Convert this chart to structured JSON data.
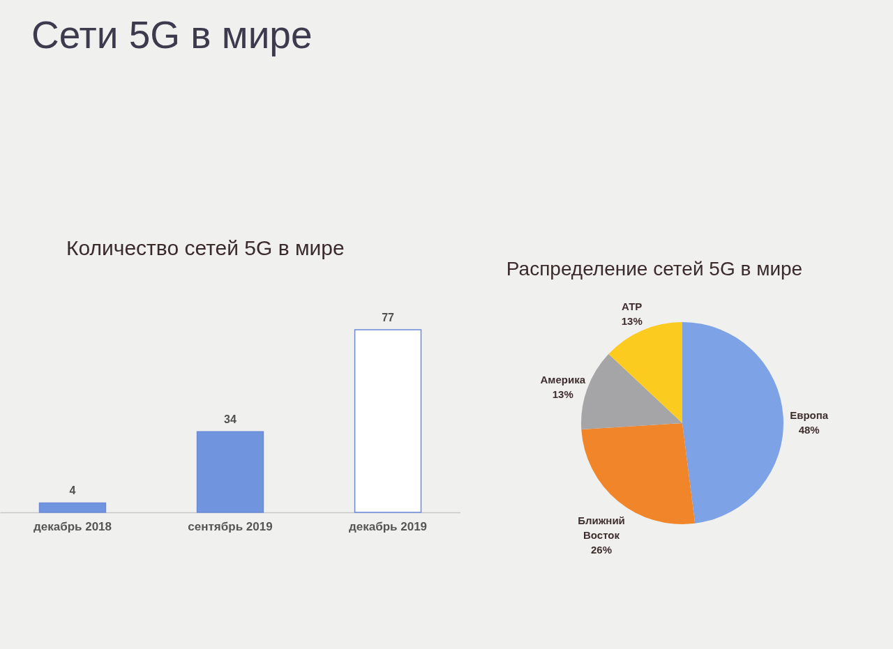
{
  "chart_data": [
    {
      "type": "other",
      "title": "Сети 5G в мире"
    },
    {
      "type": "bar",
      "title": "Количество сетей 5G в мире",
      "categories": [
        "декабрь 2018",
        "сентябрь 2019",
        "декабрь 2019"
      ],
      "values": [
        4,
        34,
        77
      ],
      "colors": [
        "#7094de",
        "#7094de",
        "#ffffff"
      ],
      "data_labels": true
    },
    {
      "type": "pie",
      "title": "Распределение сетей 5G в мире",
      "categories": [
        "Европа",
        "Ближний Восток",
        "Америка",
        "АТР"
      ],
      "values": [
        48,
        26,
        13,
        13
      ],
      "colors": [
        "#7ea2e6",
        "#f0852a",
        "#a5a5a8",
        "#fccb1f"
      ],
      "value_labels": [
        "48%",
        "26%",
        "13%",
        "13%"
      ]
    }
  ]
}
